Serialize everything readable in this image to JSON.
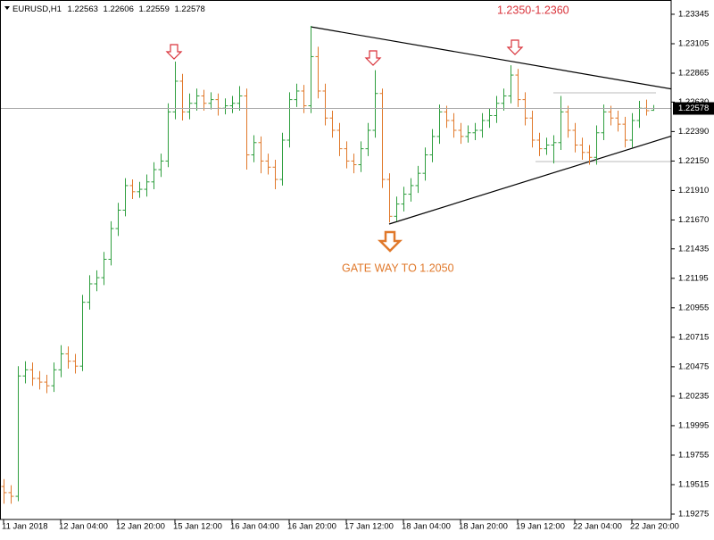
{
  "chart_data": {
    "type": "ohlc",
    "symbol": "EURUSD,H1",
    "annotations": [
      "1.2350-1.2360",
      "GATE WAY TO 1.2050"
    ],
    "up_color": "#2e9e3e",
    "down_color": "#e0782a",
    "categories": [
      "11 Jan 2018",
      null,
      null,
      null,
      null,
      null,
      null,
      null,
      "12 Jan 04:00",
      null,
      null,
      null,
      null,
      null,
      null,
      null,
      "12 Jan 20:00",
      null,
      null,
      null,
      null,
      null,
      null,
      null,
      "15 Jan 12:00",
      null,
      null,
      null,
      null,
      null,
      null,
      null,
      "16 Jan 04:00",
      null,
      null,
      null,
      null,
      null,
      null,
      null,
      "16 Jan 20:00",
      null,
      null,
      null,
      null,
      null,
      null,
      null,
      "17 Jan 12:00",
      null,
      null,
      null,
      null,
      null,
      null,
      null,
      "18 Jan 04:00",
      null,
      null,
      null,
      null,
      null,
      null,
      null,
      "18 Jan 20:00",
      null,
      null,
      null,
      null,
      null,
      null,
      null,
      "19 Jan 12:00",
      null,
      null,
      null,
      null,
      null,
      null,
      null,
      "22 Jan 04:00",
      null,
      null,
      null,
      null,
      null,
      null,
      null,
      "22 Jan 20:00",
      null,
      null,
      null
    ],
    "open": [
      1.195,
      1.1945,
      1.1942,
      1.204,
      1.2045,
      1.2038,
      1.2035,
      1.2032,
      1.2045,
      1.2058,
      1.2052,
      1.2048,
      1.21,
      1.2115,
      1.212,
      1.2135,
      1.216,
      1.2175,
      1.2195,
      1.219,
      1.2192,
      1.2198,
      1.2208,
      1.2215,
      1.2255,
      1.228,
      1.2255,
      1.2262,
      1.2268,
      1.2262,
      1.2265,
      1.2258,
      1.226,
      1.2262,
      1.2268,
      1.222,
      1.223,
      1.2215,
      1.221,
      1.22,
      1.2232,
      1.2265,
      1.2272,
      1.226,
      1.23,
      1.2272,
      1.225,
      1.224,
      1.2225,
      1.2215,
      1.2212,
      1.2225,
      1.224,
      1.227,
      1.22,
      1.217,
      1.218,
      1.2188,
      1.2195,
      1.2205,
      1.222,
      1.2235,
      1.2255,
      1.2248,
      1.224,
      1.2235,
      1.2238,
      1.224,
      1.2248,
      1.2252,
      1.2262,
      1.2268,
      1.2285,
      1.2265,
      1.225,
      1.2232,
      1.2225,
      1.2228,
      1.223,
      1.2255,
      1.224,
      1.2228,
      1.2222,
      1.2218,
      1.2238,
      1.2255,
      1.225,
      1.2245,
      1.2232,
      1.2248,
      1.2258,
      1.22563
    ],
    "high": [
      1.1956,
      1.1951,
      1.2048,
      1.2052,
      1.2051,
      1.2044,
      1.2041,
      1.2051,
      1.2065,
      1.2064,
      1.2058,
      1.2106,
      1.2122,
      1.2126,
      1.2141,
      1.2166,
      1.2181,
      1.2201,
      1.22,
      1.2198,
      1.2204,
      1.2214,
      1.2221,
      1.2262,
      1.2296,
      1.2286,
      1.227,
      1.2274,
      1.2273,
      1.2271,
      1.227,
      1.2266,
      1.2268,
      1.2276,
      1.2274,
      1.2236,
      1.2235,
      1.2221,
      1.2216,
      1.2238,
      1.2271,
      1.2278,
      1.2277,
      1.2325,
      1.2308,
      1.2278,
      1.2256,
      1.2246,
      1.2231,
      1.2221,
      1.2231,
      1.2246,
      1.2289,
      1.2274,
      1.2205,
      1.2186,
      1.2194,
      1.2201,
      1.2211,
      1.2226,
      1.2241,
      1.2261,
      1.226,
      1.2254,
      1.2246,
      1.2244,
      1.2246,
      1.2254,
      1.2258,
      1.2268,
      1.2274,
      1.2293,
      1.229,
      1.2271,
      1.2256,
      1.2238,
      1.2234,
      1.2236,
      1.2268,
      1.226,
      1.2246,
      1.2234,
      1.2228,
      1.2244,
      1.2261,
      1.226,
      1.2256,
      1.2251,
      1.2254,
      1.2264,
      1.2265,
      1.22606
    ],
    "low": [
      1.1936,
      1.1936,
      1.1938,
      1.2034,
      1.2032,
      1.2029,
      1.2026,
      1.2027,
      1.2039,
      1.2046,
      1.2042,
      1.2044,
      1.2094,
      1.2109,
      1.2114,
      1.213,
      1.2154,
      1.217,
      1.2184,
      1.2185,
      1.2186,
      1.2192,
      1.2202,
      1.221,
      1.2249,
      1.2248,
      1.2249,
      1.2256,
      1.2256,
      1.2257,
      1.2252,
      1.2253,
      1.2254,
      1.2256,
      1.2208,
      1.2214,
      1.2205,
      1.2204,
      1.2192,
      1.2195,
      1.2226,
      1.2259,
      1.2254,
      1.2254,
      1.2266,
      1.2244,
      1.2234,
      1.2219,
      1.2209,
      1.2205,
      1.2206,
      1.2219,
      1.2234,
      1.2193,
      1.2165,
      1.2166,
      1.2174,
      1.2182,
      1.2189,
      1.2199,
      1.2214,
      1.2229,
      1.2242,
      1.2234,
      1.2229,
      1.223,
      1.2232,
      1.2234,
      1.2242,
      1.2246,
      1.2256,
      1.2262,
      1.2259,
      1.2244,
      1.2226,
      1.2219,
      1.222,
      1.2213,
      1.2224,
      1.2234,
      1.2222,
      1.2216,
      1.2212,
      1.2212,
      1.2232,
      1.2244,
      1.2239,
      1.2226,
      1.2226,
      1.2242,
      1.2252,
      1.22559
    ],
    "close": [
      1.1945,
      1.1942,
      1.204,
      1.2045,
      1.2038,
      1.2035,
      1.2032,
      1.2045,
      1.2058,
      1.2052,
      1.2048,
      1.21,
      1.2115,
      1.212,
      1.2135,
      1.216,
      1.2175,
      1.2195,
      1.219,
      1.2192,
      1.2198,
      1.2208,
      1.2215,
      1.2255,
      1.228,
      1.2255,
      1.2262,
      1.2268,
      1.2262,
      1.2265,
      1.2258,
      1.226,
      1.2262,
      1.2268,
      1.222,
      1.223,
      1.2215,
      1.221,
      1.22,
      1.2232,
      1.2265,
      1.2272,
      1.226,
      1.23,
      1.2272,
      1.225,
      1.224,
      1.2225,
      1.2215,
      1.2212,
      1.2225,
      1.224,
      1.227,
      1.22,
      1.217,
      1.218,
      1.2188,
      1.2195,
      1.2205,
      1.222,
      1.2235,
      1.2255,
      1.2248,
      1.224,
      1.2235,
      1.2238,
      1.224,
      1.2248,
      1.2252,
      1.2262,
      1.2268,
      1.2285,
      1.2265,
      1.225,
      1.2232,
      1.2225,
      1.2228,
      1.223,
      1.2255,
      1.224,
      1.2228,
      1.2222,
      1.2218,
      1.2238,
      1.2255,
      1.225,
      1.2245,
      1.2232,
      1.2248,
      1.2258,
      1.2256,
      1.22578
    ],
    "ylim": [
      1.19246,
      1.23432
    ],
    "yticks": [
      1.23345,
      1.23105,
      1.22865,
      {
        "value": 1.2263,
        "label": "1.22630"
      },
      {
        "value": 1.2239,
        "label": "1.22390"
      },
      {
        "value": 1.2215,
        "label": "1.22150"
      },
      {
        "value": 1.2191,
        "label": "1.21910"
      },
      {
        "value": 1.2167,
        "label": "1.21670"
      },
      1.21435,
      1.21195,
      1.20955,
      1.20715,
      1.20475,
      1.20235,
      1.19995,
      1.19755,
      1.19515,
      1.19275
    ],
    "grid": false
  }
}
